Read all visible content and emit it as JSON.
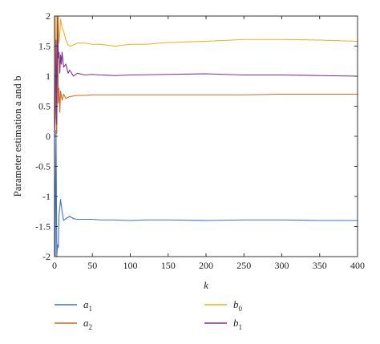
{
  "chart_data": {
    "type": "line",
    "title": "",
    "xlabel": "k",
    "ylabel": "Parameter estimation a and b",
    "xlim": [
      0,
      400
    ],
    "ylim": [
      -2,
      2
    ],
    "xticks": [
      0,
      50,
      100,
      150,
      200,
      250,
      300,
      350,
      400
    ],
    "yticks": [
      -2,
      -1.5,
      -1,
      -0.5,
      0,
      0.5,
      1,
      1.5,
      2
    ],
    "xtick_labels": [
      "0",
      "50",
      "100",
      "150",
      "200",
      "250",
      "300",
      "350",
      "400"
    ],
    "ytick_labels": [
      "-2",
      "-1.5",
      "-1",
      "-0.5",
      "0",
      "0.5",
      "1",
      "1.5",
      "2"
    ],
    "grid": false,
    "legend_position": "below",
    "series": [
      {
        "name": "a1",
        "label_base": "a",
        "label_sub": "1",
        "color": "#3B75C3",
        "x": [
          0,
          1,
          2,
          3,
          4,
          5,
          6,
          8,
          10,
          12,
          15,
          20,
          25,
          30,
          40,
          50,
          60,
          80,
          100,
          120,
          150,
          200,
          250,
          300,
          350,
          400
        ],
        "y": [
          0,
          -2,
          0.1,
          -2,
          -1.8,
          -1.85,
          -1.3,
          -1.05,
          -1.25,
          -1.4,
          -1.37,
          -1.33,
          -1.37,
          -1.38,
          -1.38,
          -1.38,
          -1.39,
          -1.39,
          -1.4,
          -1.39,
          -1.39,
          -1.4,
          -1.39,
          -1.39,
          -1.4,
          -1.4
        ]
      },
      {
        "name": "a2",
        "label_base": "a",
        "label_sub": "2",
        "color": "#D2691E",
        "x": [
          0,
          1,
          2,
          3,
          4,
          5,
          6,
          7,
          8,
          10,
          12,
          15,
          20,
          25,
          30,
          40,
          50,
          60,
          80,
          100,
          150,
          200,
          250,
          300,
          350,
          400
        ],
        "y": [
          0,
          2,
          0.3,
          0.05,
          2,
          0.55,
          0.8,
          0.4,
          0.75,
          0.6,
          0.7,
          0.63,
          0.66,
          0.67,
          0.68,
          0.68,
          0.69,
          0.69,
          0.69,
          0.69,
          0.69,
          0.69,
          0.69,
          0.7,
          0.7,
          0.7
        ]
      },
      {
        "name": "b0",
        "label_base": "b",
        "label_sub": "0",
        "color": "#EDB120",
        "x": [
          0,
          1,
          2,
          3,
          4,
          5,
          6,
          7,
          8,
          10,
          12,
          15,
          18,
          20,
          25,
          30,
          40,
          50,
          60,
          80,
          100,
          120,
          150,
          200,
          250,
          300,
          350,
          400
        ],
        "y": [
          0,
          2,
          0.5,
          2,
          1.4,
          2,
          1.55,
          1.7,
          1.95,
          1.8,
          1.75,
          1.6,
          1.52,
          1.5,
          1.52,
          1.55,
          1.55,
          1.53,
          1.53,
          1.5,
          1.53,
          1.53,
          1.56,
          1.58,
          1.61,
          1.61,
          1.6,
          1.58
        ]
      },
      {
        "name": "b1",
        "label_base": "b",
        "label_sub": "1",
        "color": "#7E2F8E",
        "x": [
          0,
          1,
          2,
          3,
          4,
          5,
          6,
          7,
          8,
          9,
          10,
          12,
          15,
          18,
          20,
          25,
          30,
          40,
          50,
          60,
          80,
          100,
          150,
          200,
          250,
          300,
          350,
          400
        ],
        "y": [
          0,
          0.5,
          1.6,
          0.2,
          2,
          1.3,
          1.4,
          1.05,
          1.35,
          1.2,
          1.4,
          1.15,
          1.2,
          1.05,
          1.1,
          1.0,
          1.05,
          1.02,
          1.03,
          1.02,
          1.01,
          1.02,
          1.03,
          1.04,
          1.02,
          1.02,
          1.01,
          1.0
        ]
      }
    ]
  }
}
